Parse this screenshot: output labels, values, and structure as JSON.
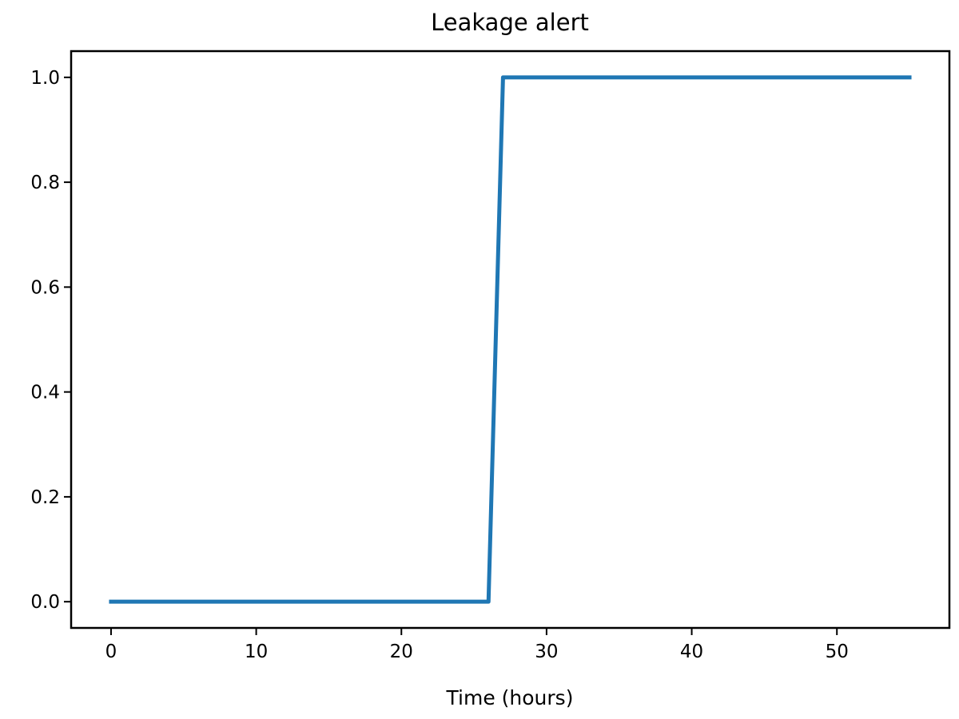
{
  "chart_data": {
    "type": "line",
    "title": "Leakage alert",
    "xlabel": "Time (hours)",
    "ylabel": "",
    "xlim": [
      -2.75,
      57.75
    ],
    "ylim": [
      -0.05,
      1.05
    ],
    "xticks": [
      0,
      10,
      20,
      30,
      40,
      50
    ],
    "yticks": [
      0.0,
      0.2,
      0.4,
      0.6,
      0.8,
      1.0
    ],
    "xtick_labels": [
      "0",
      "10",
      "20",
      "30",
      "40",
      "50"
    ],
    "ytick_labels": [
      "0.0",
      "0.2",
      "0.4",
      "0.6",
      "0.8",
      "1.0"
    ],
    "grid": false,
    "series": [
      {
        "color": "#1f77b4",
        "x": [
          0,
          26,
          27,
          55
        ],
        "y": [
          0,
          0,
          1,
          1
        ]
      }
    ]
  }
}
